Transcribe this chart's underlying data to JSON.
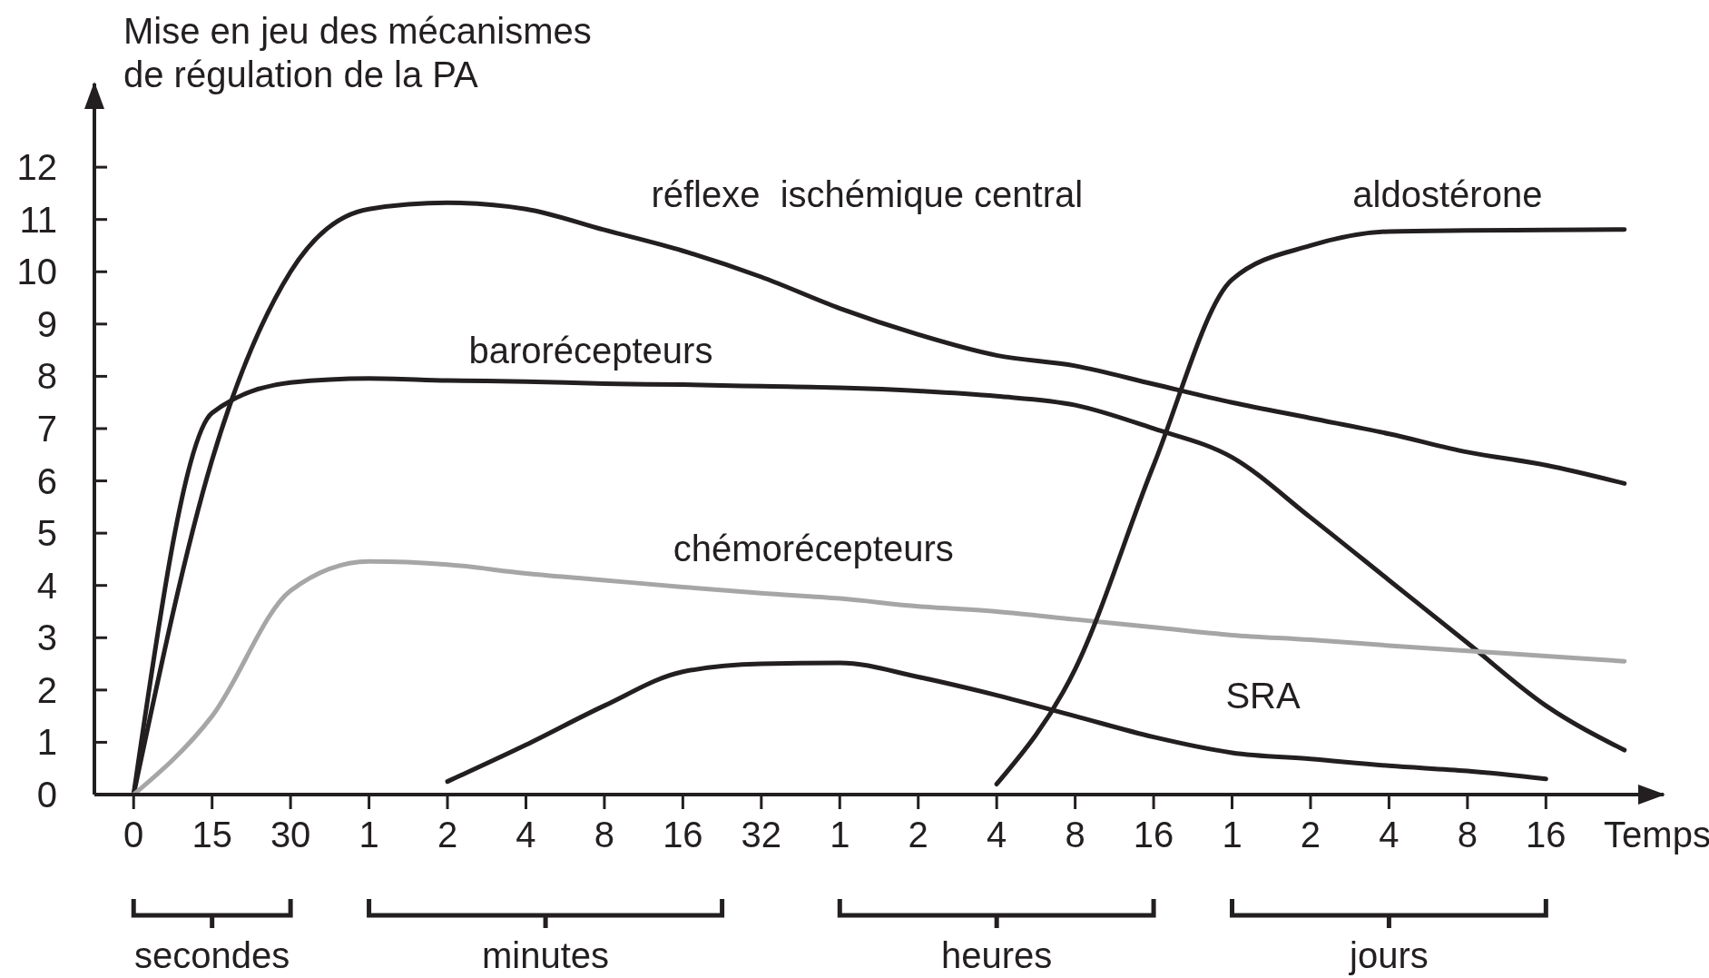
{
  "chart_data": {
    "type": "line",
    "ylabel": "Mise en jeu des mécanismes\nde régulation de la PA",
    "xlabel": "Temps",
    "categories": [
      "0",
      "15",
      "30",
      "1",
      "2",
      "4",
      "8",
      "16",
      "32",
      "1",
      "2",
      "4",
      "8",
      "16",
      "1",
      "2",
      "4",
      "8",
      "16",
      null
    ],
    "ylim": [
      0,
      13.6
    ],
    "yticks": [
      0,
      1,
      2,
      3,
      4,
      5,
      6,
      7,
      8,
      9,
      10,
      11,
      12
    ],
    "annotations": [
      "secondes",
      "minutes",
      "heures",
      "jours"
    ],
    "series": [
      {
        "name": "réflexe  ischémique central",
        "color": "#231f20",
        "values": [
          0,
          6.4,
          10.0,
          11.2,
          11.32,
          11.2,
          10.8,
          10.4,
          9.9,
          9.3,
          8.8,
          8.4,
          8.2,
          7.85,
          7.5,
          7.2,
          6.9,
          6.55,
          6.3,
          5.95
        ]
      },
      {
        "name": "barorécepteurs",
        "color": "#231f20",
        "values": [
          0,
          7.3,
          7.88,
          7.96,
          7.92,
          7.9,
          7.86,
          7.84,
          7.81,
          7.78,
          7.72,
          7.62,
          7.45,
          7.0,
          6.45,
          5.3,
          4.1,
          2.9,
          1.7,
          0.85
        ]
      },
      {
        "name": "chémorécepteurs",
        "color": "#a6a6a6",
        "values": [
          0,
          1.5,
          3.9,
          4.46,
          4.4,
          4.23,
          4.1,
          3.97,
          3.85,
          3.75,
          3.6,
          3.5,
          3.35,
          3.2,
          3.05,
          2.96,
          2.85,
          2.75,
          2.65,
          2.55
        ]
      },
      {
        "name": "SRA",
        "color": "#231f20",
        "values": [
          null,
          null,
          null,
          null,
          0.25,
          0.95,
          1.7,
          2.35,
          2.5,
          2.52,
          2.25,
          1.9,
          1.5,
          1.1,
          0.8,
          0.68,
          0.55,
          0.45,
          0.3,
          null
        ]
      },
      {
        "name": "aldostérone",
        "color": "#231f20",
        "values": [
          null,
          null,
          null,
          null,
          null,
          null,
          null,
          null,
          null,
          null,
          null,
          0.2,
          2.4,
          6.3,
          9.85,
          10.5,
          10.77,
          10.79,
          10.8,
          10.81
        ]
      }
    ]
  }
}
